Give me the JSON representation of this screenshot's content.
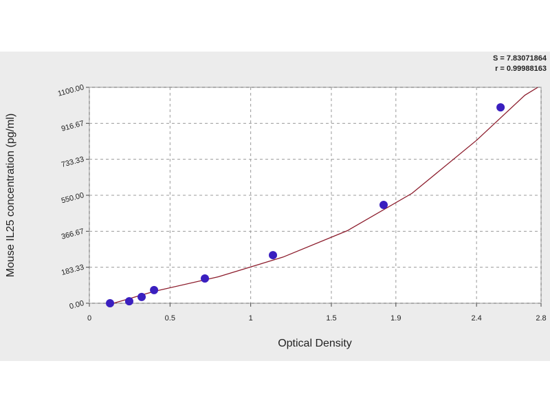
{
  "chart_data": {
    "type": "scatter",
    "x_label": "Optical Density",
    "y_label": "Mouse IL25 concentration (pg/ml)",
    "annotations": [
      "S = 7.83071864",
      "r = 0.99988163"
    ],
    "xlim": [
      0,
      2.8
    ],
    "ylim": [
      0,
      1100
    ],
    "xticks": [
      0,
      0.5,
      1.0,
      1.5,
      1.9,
      2.4,
      2.8
    ],
    "yticks": [
      {
        "value": 0,
        "label": "0.00"
      },
      {
        "value": 183.33,
        "label": "183.33"
      },
      {
        "value": 366.67,
        "label": "366.67"
      },
      {
        "value": 550,
        "label": "550.00"
      },
      {
        "value": 733.33,
        "label": "733.33"
      },
      {
        "value": 916.67,
        "label": "916.67"
      },
      {
        "value": 1100,
        "label": "1100.00"
      }
    ],
    "grid": true,
    "series": [
      {
        "color": "#3a1fbf",
        "x": [
          0.128,
          0.247,
          0.324,
          0.401,
          0.716,
          1.138,
          1.824,
          2.549
        ],
        "values": [
          0,
          10,
          32,
          67,
          126,
          245,
          501,
          998
        ]
      }
    ],
    "fit": {
      "color": "#8b1a2a",
      "x": [
        0.15,
        0.4,
        0.8,
        1.2,
        1.6,
        2.0,
        2.4,
        2.7,
        2.78
      ],
      "values": [
        0,
        60,
        135,
        235,
        370,
        560,
        830,
        1060,
        1100
      ]
    }
  }
}
